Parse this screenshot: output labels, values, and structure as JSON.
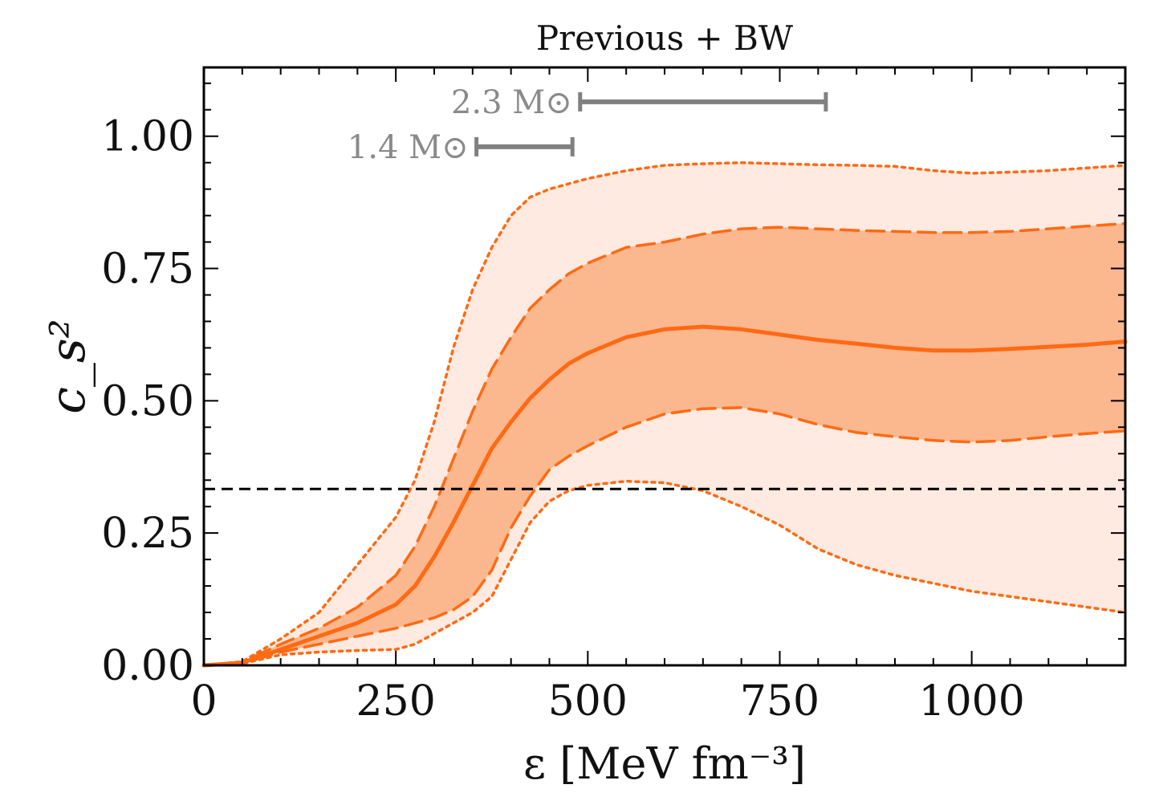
{
  "chart_data": {
    "type": "line",
    "title": "Previous + BW",
    "xlabel": "ε [MeV fm⁻³]",
    "ylabel": "c_s²",
    "xlim": [
      0,
      1200
    ],
    "ylim": [
      0,
      1.13
    ],
    "x_ticks": [
      0,
      250,
      500,
      750,
      1000
    ],
    "x_tick_labels": [
      "0",
      "250",
      "500",
      "750",
      "1000"
    ],
    "y_ticks": [
      0.0,
      0.25,
      0.5,
      0.75,
      1.0
    ],
    "y_tick_labels": [
      "0.00",
      "0.25",
      "0.50",
      "0.75",
      "1.00"
    ],
    "conformal_limit": 0.3333,
    "colors": {
      "median": "#ff6a13",
      "band68": "#fbb78e",
      "band95": "#feeae0",
      "reference": "#000000",
      "annotation": "#808080"
    },
    "x": [
      0,
      50,
      100,
      150,
      200,
      250,
      275,
      300,
      325,
      350,
      375,
      400,
      425,
      450,
      475,
      500,
      550,
      600,
      650,
      700,
      750,
      800,
      850,
      900,
      950,
      1000,
      1050,
      1100,
      1150,
      1200
    ],
    "series": [
      {
        "name": "median",
        "style": "solid",
        "values": [
          0,
          0.005,
          0.03,
          0.055,
          0.08,
          0.115,
          0.15,
          0.205,
          0.27,
          0.34,
          0.41,
          0.46,
          0.505,
          0.54,
          0.57,
          0.59,
          0.62,
          0.635,
          0.64,
          0.635,
          0.625,
          0.615,
          0.608,
          0.6,
          0.595,
          0.595,
          0.598,
          0.602,
          0.606,
          0.612
        ]
      },
      {
        "name": "68% lower",
        "style": "dashed",
        "values": [
          0,
          0.004,
          0.025,
          0.04,
          0.055,
          0.07,
          0.08,
          0.09,
          0.105,
          0.13,
          0.18,
          0.26,
          0.32,
          0.37,
          0.395,
          0.415,
          0.45,
          0.475,
          0.485,
          0.487,
          0.475,
          0.455,
          0.44,
          0.432,
          0.425,
          0.422,
          0.425,
          0.432,
          0.438,
          0.443
        ]
      },
      {
        "name": "68% upper",
        "style": "dashed",
        "values": [
          0,
          0.006,
          0.04,
          0.07,
          0.11,
          0.17,
          0.225,
          0.3,
          0.39,
          0.48,
          0.56,
          0.62,
          0.675,
          0.71,
          0.74,
          0.76,
          0.79,
          0.8,
          0.815,
          0.825,
          0.828,
          0.825,
          0.822,
          0.82,
          0.818,
          0.818,
          0.82,
          0.825,
          0.83,
          0.835
        ]
      },
      {
        "name": "95% lower",
        "style": "dotted",
        "values": [
          0,
          0.003,
          0.02,
          0.025,
          0.028,
          0.03,
          0.04,
          0.06,
          0.08,
          0.1,
          0.13,
          0.2,
          0.27,
          0.31,
          0.33,
          0.34,
          0.348,
          0.345,
          0.33,
          0.3,
          0.265,
          0.22,
          0.19,
          0.17,
          0.155,
          0.14,
          0.13,
          0.12,
          0.11,
          0.1
        ]
      },
      {
        "name": "95% upper",
        "style": "dotted",
        "values": [
          0,
          0.007,
          0.05,
          0.1,
          0.19,
          0.28,
          0.35,
          0.46,
          0.6,
          0.71,
          0.79,
          0.85,
          0.885,
          0.9,
          0.91,
          0.92,
          0.935,
          0.945,
          0.948,
          0.95,
          0.948,
          0.946,
          0.945,
          0.943,
          0.935,
          0.93,
          0.932,
          0.935,
          0.94,
          0.945
        ]
      }
    ],
    "annotations": [
      {
        "label": "2.3 M⊙",
        "x_start": 490,
        "x_end": 810,
        "y": 1.065
      },
      {
        "label": "1.4 M⊙",
        "x_start": 355,
        "x_end": 480,
        "y": 0.98
      }
    ]
  }
}
